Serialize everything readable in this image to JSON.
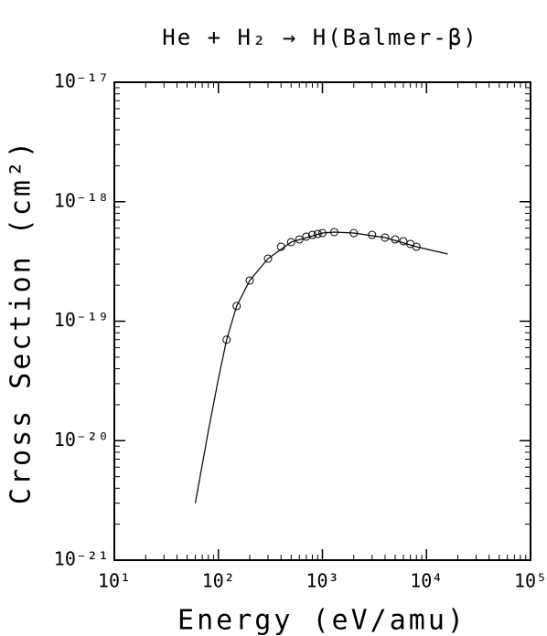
{
  "chart_data": {
    "type": "line",
    "title": "He + H₂ → H(Balmer-β)",
    "xlabel": "Energy (eV/amu)",
    "ylabel": "Cross Section (cm²)",
    "xscale": "log",
    "yscale": "log",
    "xlim": [
      10,
      100000
    ],
    "ylim": [
      1e-21,
      1e-17
    ],
    "xticks": [
      {
        "value": 10,
        "label": "10¹"
      },
      {
        "value": 100,
        "label": "10²"
      },
      {
        "value": 1000,
        "label": "10³"
      },
      {
        "value": 10000,
        "label": "10⁴"
      },
      {
        "value": 100000,
        "label": "10⁵"
      }
    ],
    "yticks": [
      {
        "value": 1e-21,
        "label": "10⁻²¹"
      },
      {
        "value": 1e-20,
        "label": "10⁻²⁰"
      },
      {
        "value": 1e-19,
        "label": "10⁻¹⁹"
      },
      {
        "value": 1e-18,
        "label": "10⁻¹⁸"
      },
      {
        "value": 1e-17,
        "label": "10⁻¹⁷"
      }
    ],
    "series": [
      {
        "style": "line",
        "color": "#000000",
        "x": [
          60,
          80,
          100,
          120,
          150,
          200,
          300,
          500,
          1000,
          1300,
          2000,
          4000,
          8000,
          16000
        ],
        "values": [
          3e-21,
          1.2e-20,
          3.3e-20,
          7e-20,
          1.34e-19,
          2.19e-19,
          3.34e-19,
          4.59e-19,
          5.47e-19,
          5.57e-19,
          5.47e-19,
          5.01e-19,
          4.2e-19,
          3.65e-19
        ]
      },
      {
        "style": "markers",
        "color": "#000000",
        "x": [
          120,
          150,
          200,
          300,
          400,
          500,
          600,
          700,
          800,
          900,
          1000,
          1300,
          2000,
          3000,
          4000,
          5000,
          6000,
          7000,
          8000
        ],
        "values": [
          7e-20,
          1.34e-19,
          2.19e-19,
          3.34e-19,
          4.2e-19,
          4.59e-19,
          4.84e-19,
          5.1e-19,
          5.28e-19,
          5.37e-19,
          5.47e-19,
          5.57e-19,
          5.47e-19,
          5.28e-19,
          5.01e-19,
          4.84e-19,
          4.67e-19,
          4.43e-19,
          4.2e-19
        ]
      }
    ]
  }
}
